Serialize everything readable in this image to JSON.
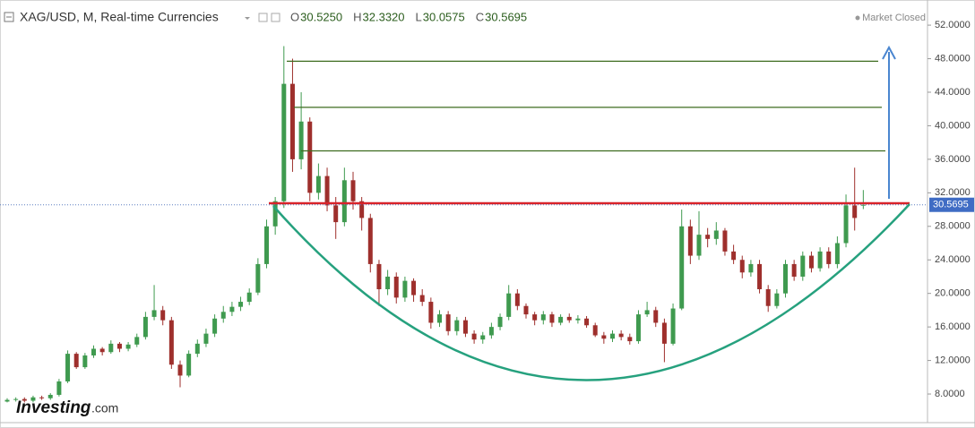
{
  "header": {
    "title": "XAG/USD, M, Real-time Currencies",
    "ohlc": [
      {
        "key": "O",
        "text": "30.5250"
      },
      {
        "key": "H",
        "text": "32.3320"
      },
      {
        "key": "L",
        "text": "30.0575"
      },
      {
        "key": "C",
        "text": "30.5695"
      }
    ],
    "status": "Market Closed"
  },
  "logo": {
    "name": "Investing",
    "suffix": ".com"
  },
  "chart_data": {
    "type": "candlestick",
    "up_color": "#3f9a4f",
    "down_color": "#9e2f2c",
    "ylim": [
      4.8,
      55
    ],
    "yticks": [
      {
        "value": 8,
        "label": "8.0000"
      },
      {
        "value": 12,
        "label": "12.0000"
      },
      {
        "value": 16,
        "label": "16.0000"
      },
      {
        "value": 20,
        "label": "20.0000"
      },
      {
        "value": 24,
        "label": "24.0000"
      },
      {
        "value": 28,
        "label": "28.0000"
      },
      {
        "value": 32,
        "label": "32.0000"
      },
      {
        "value": 36,
        "label": "36.0000"
      },
      {
        "value": 40,
        "label": "40.0000"
      },
      {
        "value": 44,
        "label": "44.0000"
      },
      {
        "value": 48,
        "label": "48.0000"
      },
      {
        "value": 52,
        "label": "52.0000"
      }
    ],
    "last_price": {
      "value": 30.5695,
      "label": "30.5695"
    },
    "resistance_lines": [
      47.7,
      42.2,
      37.0
    ],
    "resistance_color": "#3d6b1f",
    "neckline": 30.75,
    "neckline_color": "#d8232a",
    "open": [
      7.1,
      7.3,
      7.4,
      7.2,
      7.6,
      7.5,
      7.9,
      9.5,
      12.8,
      11.2,
      12.6,
      13.4,
      13.0,
      14.0,
      13.4,
      13.9,
      14.8,
      17.2,
      18.0,
      16.8,
      11.5,
      10.2,
      12.8,
      14.0,
      15.2,
      17.0,
      17.8,
      18.4,
      19.0,
      20.1,
      23.5,
      28.0,
      31.0,
      45.0,
      36.0,
      40.5,
      32.0,
      34.0,
      30.5,
      28.5,
      33.5,
      31.0,
      29.0,
      23.5,
      20.5,
      22.0,
      19.5,
      21.5,
      19.8,
      19.0,
      16.5,
      17.5,
      15.5,
      16.8,
      15.2,
      14.5,
      15.0,
      16.0,
      17.2,
      20.0,
      18.5,
      17.5,
      16.8,
      17.5,
      16.5,
      17.2,
      16.8,
      17.0,
      16.2,
      15.0,
      14.6,
      15.2,
      14.8,
      14.3,
      17.5,
      18.0,
      16.5,
      14.0,
      18.2,
      28.0,
      24.5,
      27.0,
      26.5,
      27.5,
      25.0,
      24.0,
      22.5,
      23.5,
      20.5,
      18.5,
      20.0,
      23.5,
      22.0,
      24.5,
      23.0,
      25.0,
      23.5,
      26.0,
      30.5,
      30.525
    ],
    "high": [
      7.5,
      7.6,
      7.6,
      7.8,
      7.8,
      8.1,
      9.8,
      13.2,
      13.0,
      12.9,
      13.8,
      13.6,
      14.4,
      14.2,
      14.2,
      15.2,
      17.8,
      21.0,
      18.5,
      17.2,
      12.0,
      13.2,
      14.5,
      15.8,
      17.5,
      18.5,
      19.0,
      19.6,
      20.6,
      24.2,
      28.8,
      31.5,
      49.5,
      48.0,
      44.0,
      41.0,
      35.5,
      35.0,
      31.5,
      35.0,
      34.5,
      31.5,
      29.5,
      24.0,
      22.8,
      22.5,
      22.0,
      21.8,
      20.5,
      19.5,
      18.0,
      17.9,
      17.2,
      17.2,
      15.6,
      15.4,
      16.5,
      17.6,
      21.0,
      20.5,
      18.8,
      17.8,
      17.9,
      17.8,
      17.5,
      17.6,
      17.4,
      17.3,
      16.5,
      15.4,
      15.6,
      15.6,
      15.2,
      18.0,
      19.0,
      18.4,
      17.0,
      18.8,
      30.0,
      28.8,
      29.8,
      27.8,
      28.5,
      27.8,
      25.8,
      24.5,
      24.0,
      24.0,
      21.0,
      20.5,
      24.0,
      24.0,
      25.0,
      25.0,
      25.5,
      25.5,
      26.8,
      31.8,
      35.0,
      32.332
    ],
    "low": [
      7.0,
      7.1,
      7.0,
      7.0,
      7.3,
      7.3,
      7.7,
      9.3,
      11.0,
      11.0,
      12.3,
      12.6,
      12.8,
      13.0,
      13.1,
      13.6,
      14.5,
      16.8,
      16.2,
      11.0,
      8.8,
      10.0,
      12.4,
      13.6,
      14.8,
      16.5,
      17.3,
      17.9,
      18.6,
      19.8,
      23.0,
      27.0,
      30.2,
      34.5,
      34.8,
      31.0,
      31.2,
      29.8,
      26.5,
      28.0,
      30.0,
      27.5,
      22.5,
      18.5,
      19.8,
      18.8,
      19.0,
      19.0,
      18.5,
      15.8,
      16.0,
      15.0,
      15.0,
      14.8,
      14.0,
      14.0,
      14.6,
      15.6,
      16.8,
      18.0,
      17.0,
      16.2,
      16.3,
      16.0,
      16.2,
      16.5,
      16.4,
      15.9,
      14.8,
      14.0,
      14.2,
      14.4,
      13.9,
      14.0,
      17.2,
      16.0,
      11.8,
      13.8,
      18.0,
      23.5,
      24.0,
      25.5,
      25.8,
      24.5,
      23.5,
      21.8,
      22.0,
      20.0,
      17.8,
      18.2,
      19.5,
      21.5,
      21.5,
      22.5,
      22.6,
      23.0,
      23.0,
      25.5,
      27.5,
      30.0575
    ],
    "close": [
      7.3,
      7.4,
      7.2,
      7.6,
      7.5,
      7.9,
      9.5,
      12.8,
      11.2,
      12.6,
      13.4,
      13.0,
      14.0,
      13.4,
      13.9,
      14.8,
      17.2,
      18.0,
      16.8,
      11.5,
      10.2,
      12.8,
      14.0,
      15.2,
      17.0,
      17.8,
      18.4,
      19.0,
      20.1,
      23.5,
      28.0,
      31.0,
      45.0,
      36.0,
      40.5,
      32.0,
      34.0,
      30.5,
      28.5,
      33.5,
      31.0,
      29.0,
      23.5,
      20.5,
      22.0,
      19.5,
      21.5,
      19.8,
      19.0,
      16.5,
      17.5,
      15.5,
      16.8,
      15.2,
      14.5,
      15.0,
      16.0,
      17.2,
      20.0,
      18.5,
      17.5,
      16.8,
      17.5,
      16.5,
      17.2,
      16.8,
      17.0,
      16.2,
      15.0,
      14.6,
      15.2,
      14.8,
      14.3,
      17.5,
      18.0,
      16.5,
      14.0,
      18.2,
      28.0,
      24.5,
      27.0,
      26.5,
      27.5,
      25.0,
      24.0,
      22.5,
      23.5,
      20.5,
      18.5,
      20.0,
      23.5,
      22.0,
      24.5,
      23.0,
      25.0,
      23.5,
      26.0,
      30.5,
      29.0,
      30.5695
    ]
  }
}
